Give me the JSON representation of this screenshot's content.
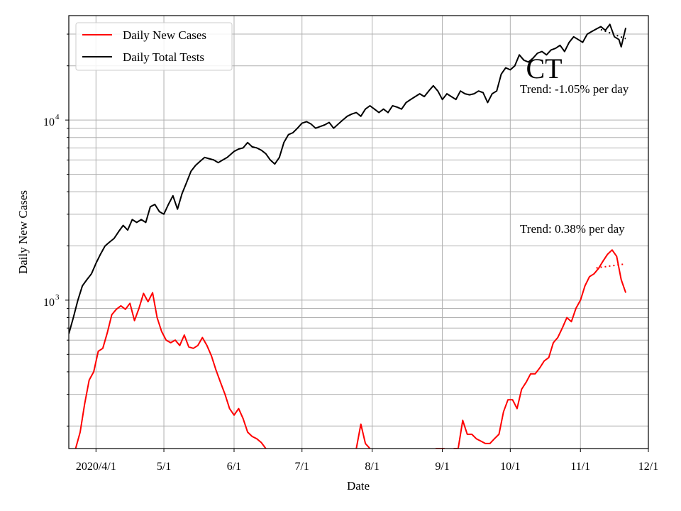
{
  "chart_data": {
    "type": "line",
    "title": "",
    "state_label": "CT",
    "xlabel": "Date",
    "ylabel": "Daily New Cases",
    "y_scale": "log",
    "ylim": [
      150,
      38000
    ],
    "xlim": [
      "2020-03-20",
      "2020-12-01"
    ],
    "grid": true,
    "legend_position": "upper-left",
    "x_ticks": [
      {
        "date": "2020-04-01",
        "label": "2020/4/1"
      },
      {
        "date": "2020-05-01",
        "label": "5/1"
      },
      {
        "date": "2020-06-01",
        "label": "6/1"
      },
      {
        "date": "2020-07-01",
        "label": "7/1"
      },
      {
        "date": "2020-08-01",
        "label": "8/1"
      },
      {
        "date": "2020-09-01",
        "label": "9/1"
      },
      {
        "date": "2020-10-01",
        "label": "10/1"
      },
      {
        "date": "2020-11-01",
        "label": "11/1"
      },
      {
        "date": "2020-12-01",
        "label": "12/1"
      }
    ],
    "y_ticks": [
      {
        "value": 1000,
        "base": "10",
        "exp": "3"
      },
      {
        "value": 10000,
        "base": "10",
        "exp": "4"
      }
    ],
    "series": [
      {
        "name": "Daily New Cases",
        "color": "#ff0000",
        "points": [
          [
            "2020-03-23",
            150
          ],
          [
            "2020-03-25",
            185
          ],
          [
            "2020-03-27",
            265
          ],
          [
            "2020-03-29",
            360
          ],
          [
            "2020-03-31",
            400
          ],
          [
            "2020-04-02",
            520
          ],
          [
            "2020-04-04",
            540
          ],
          [
            "2020-04-06",
            660
          ],
          [
            "2020-04-08",
            830
          ],
          [
            "2020-04-10",
            890
          ],
          [
            "2020-04-12",
            930
          ],
          [
            "2020-04-14",
            890
          ],
          [
            "2020-04-16",
            960
          ],
          [
            "2020-04-18",
            770
          ],
          [
            "2020-04-20",
            900
          ],
          [
            "2020-04-22",
            1090
          ],
          [
            "2020-04-24",
            980
          ],
          [
            "2020-04-26",
            1100
          ],
          [
            "2020-04-28",
            800
          ],
          [
            "2020-04-30",
            670
          ],
          [
            "2020-05-02",
            600
          ],
          [
            "2020-05-04",
            580
          ],
          [
            "2020-05-06",
            600
          ],
          [
            "2020-05-08",
            560
          ],
          [
            "2020-05-10",
            640
          ],
          [
            "2020-05-12",
            550
          ],
          [
            "2020-05-14",
            540
          ],
          [
            "2020-05-16",
            560
          ],
          [
            "2020-05-18",
            620
          ],
          [
            "2020-05-20",
            560
          ],
          [
            "2020-05-22",
            490
          ],
          [
            "2020-05-24",
            410
          ],
          [
            "2020-05-26",
            350
          ],
          [
            "2020-05-28",
            300
          ],
          [
            "2020-05-30",
            250
          ],
          [
            "2020-06-01",
            230
          ],
          [
            "2020-06-03",
            250
          ],
          [
            "2020-06-05",
            220
          ],
          [
            "2020-06-07",
            185
          ],
          [
            "2020-06-09",
            175
          ],
          [
            "2020-06-11",
            170
          ],
          [
            "2020-06-13",
            162
          ],
          [
            "2020-06-15",
            150
          ],
          null,
          [
            "2020-07-25",
            150
          ],
          [
            "2020-07-27",
            205
          ],
          [
            "2020-07-29",
            160
          ],
          [
            "2020-07-31",
            150
          ],
          null,
          [
            "2020-08-29",
            150
          ],
          [
            "2020-09-02",
            150
          ],
          null,
          [
            "2020-09-06",
            150
          ],
          [
            "2020-09-08",
            150
          ],
          [
            "2020-09-10",
            215
          ],
          [
            "2020-09-12",
            180
          ],
          [
            "2020-09-14",
            180
          ],
          [
            "2020-09-16",
            170
          ],
          [
            "2020-09-18",
            165
          ],
          [
            "2020-09-20",
            160
          ],
          [
            "2020-09-22",
            160
          ],
          [
            "2020-09-24",
            170
          ],
          [
            "2020-09-26",
            180
          ],
          [
            "2020-09-28",
            240
          ],
          [
            "2020-09-30",
            280
          ],
          [
            "2020-10-02",
            280
          ],
          [
            "2020-10-04",
            250
          ],
          [
            "2020-10-06",
            320
          ],
          [
            "2020-10-08",
            350
          ],
          [
            "2020-10-10",
            390
          ],
          [
            "2020-10-12",
            390
          ],
          [
            "2020-10-14",
            420
          ],
          [
            "2020-10-16",
            460
          ],
          [
            "2020-10-18",
            480
          ],
          [
            "2020-10-20",
            580
          ],
          [
            "2020-10-22",
            620
          ],
          [
            "2020-10-24",
            700
          ],
          [
            "2020-10-26",
            800
          ],
          [
            "2020-10-28",
            760
          ],
          [
            "2020-10-30",
            900
          ],
          [
            "2020-11-01",
            1000
          ],
          [
            "2020-11-03",
            1200
          ],
          [
            "2020-11-05",
            1350
          ],
          [
            "2020-11-07",
            1400
          ],
          [
            "2020-11-09",
            1500
          ],
          [
            "2020-11-11",
            1650
          ],
          [
            "2020-11-13",
            1800
          ],
          [
            "2020-11-15",
            1900
          ],
          [
            "2020-11-17",
            1750
          ],
          [
            "2020-11-19",
            1300
          ],
          [
            "2020-11-21",
            1100
          ]
        ],
        "trend": {
          "start": [
            "2020-11-08",
            1510
          ],
          "end": [
            "2020-11-21",
            1590
          ],
          "label": "Trend: 0.38% per day"
        }
      },
      {
        "name": "Daily Total Tests",
        "color": "#000000",
        "points": [
          [
            "2020-03-20",
            650
          ],
          [
            "2020-03-22",
            800
          ],
          [
            "2020-03-24",
            1000
          ],
          [
            "2020-03-26",
            1200
          ],
          [
            "2020-03-28",
            1300
          ],
          [
            "2020-03-30",
            1400
          ],
          [
            "2020-04-01",
            1600
          ],
          [
            "2020-04-03",
            1800
          ],
          [
            "2020-04-05",
            2000
          ],
          [
            "2020-04-07",
            2100
          ],
          [
            "2020-04-09",
            2200
          ],
          [
            "2020-04-11",
            2400
          ],
          [
            "2020-04-13",
            2600
          ],
          [
            "2020-04-15",
            2450
          ],
          [
            "2020-04-17",
            2800
          ],
          [
            "2020-04-19",
            2700
          ],
          [
            "2020-04-21",
            2800
          ],
          [
            "2020-04-23",
            2700
          ],
          [
            "2020-04-25",
            3300
          ],
          [
            "2020-04-27",
            3400
          ],
          [
            "2020-04-29",
            3100
          ],
          [
            "2020-05-01",
            3000
          ],
          [
            "2020-05-03",
            3400
          ],
          [
            "2020-05-05",
            3800
          ],
          [
            "2020-05-07",
            3200
          ],
          [
            "2020-05-09",
            3900
          ],
          [
            "2020-05-11",
            4500
          ],
          [
            "2020-05-13",
            5200
          ],
          [
            "2020-05-15",
            5600
          ],
          [
            "2020-05-17",
            5900
          ],
          [
            "2020-05-19",
            6200
          ],
          [
            "2020-05-21",
            6100
          ],
          [
            "2020-05-23",
            6000
          ],
          [
            "2020-05-25",
            5800
          ],
          [
            "2020-05-27",
            6000
          ],
          [
            "2020-05-29",
            6200
          ],
          [
            "2020-06-01",
            6700
          ],
          [
            "2020-06-03",
            6900
          ],
          [
            "2020-06-05",
            7000
          ],
          [
            "2020-06-07",
            7500
          ],
          [
            "2020-06-09",
            7100
          ],
          [
            "2020-06-11",
            7000
          ],
          [
            "2020-06-13",
            6800
          ],
          [
            "2020-06-15",
            6500
          ],
          [
            "2020-06-17",
            6000
          ],
          [
            "2020-06-19",
            5700
          ],
          [
            "2020-06-21",
            6200
          ],
          [
            "2020-06-23",
            7500
          ],
          [
            "2020-06-25",
            8300
          ],
          [
            "2020-06-27",
            8500
          ],
          [
            "2020-06-29",
            9000
          ],
          [
            "2020-07-01",
            9600
          ],
          [
            "2020-07-03",
            9800
          ],
          [
            "2020-07-05",
            9500
          ],
          [
            "2020-07-07",
            9000
          ],
          [
            "2020-07-09",
            9200
          ],
          [
            "2020-07-11",
            9400
          ],
          [
            "2020-07-13",
            9700
          ],
          [
            "2020-07-15",
            9000
          ],
          [
            "2020-07-17",
            9500
          ],
          [
            "2020-07-19",
            10000
          ],
          [
            "2020-07-21",
            10500
          ],
          [
            "2020-07-23",
            10800
          ],
          [
            "2020-07-25",
            11000
          ],
          [
            "2020-07-27",
            10500
          ],
          [
            "2020-07-29",
            11500
          ],
          [
            "2020-07-31",
            12000
          ],
          [
            "2020-08-02",
            11500
          ],
          [
            "2020-08-04",
            11000
          ],
          [
            "2020-08-06",
            11500
          ],
          [
            "2020-08-08",
            11000
          ],
          [
            "2020-08-10",
            12000
          ],
          [
            "2020-08-12",
            11800
          ],
          [
            "2020-08-14",
            11500
          ],
          [
            "2020-08-16",
            12500
          ],
          [
            "2020-08-18",
            13000
          ],
          [
            "2020-08-20",
            13500
          ],
          [
            "2020-08-22",
            14000
          ],
          [
            "2020-08-24",
            13500
          ],
          [
            "2020-08-26",
            14500
          ],
          [
            "2020-08-28",
            15500
          ],
          [
            "2020-08-30",
            14500
          ],
          [
            "2020-09-01",
            13000
          ],
          [
            "2020-09-03",
            14000
          ],
          [
            "2020-09-05",
            13500
          ],
          [
            "2020-09-07",
            13000
          ],
          [
            "2020-09-09",
            14500
          ],
          [
            "2020-09-11",
            14000
          ],
          [
            "2020-09-13",
            13800
          ],
          [
            "2020-09-15",
            14000
          ],
          [
            "2020-09-17",
            14500
          ],
          [
            "2020-09-19",
            14200
          ],
          [
            "2020-09-21",
            12500
          ],
          [
            "2020-09-23",
            14000
          ],
          [
            "2020-09-25",
            14500
          ],
          [
            "2020-09-27",
            18000
          ],
          [
            "2020-09-29",
            19500
          ],
          [
            "2020-10-01",
            19000
          ],
          [
            "2020-10-03",
            20000
          ],
          [
            "2020-10-05",
            23000
          ],
          [
            "2020-10-07",
            21500
          ],
          [
            "2020-10-09",
            21000
          ],
          [
            "2020-10-11",
            22000
          ],
          [
            "2020-10-13",
            23500
          ],
          [
            "2020-10-15",
            24000
          ],
          [
            "2020-10-17",
            23000
          ],
          [
            "2020-10-19",
            24500
          ],
          [
            "2020-10-21",
            25000
          ],
          [
            "2020-10-23",
            26000
          ],
          [
            "2020-10-25",
            24000
          ],
          [
            "2020-10-27",
            27000
          ],
          [
            "2020-10-29",
            29000
          ],
          [
            "2020-10-31",
            28000
          ],
          [
            "2020-11-02",
            27000
          ],
          [
            "2020-11-04",
            30000
          ],
          [
            "2020-11-06",
            31000
          ],
          [
            "2020-11-08",
            32000
          ],
          [
            "2020-11-10",
            33000
          ],
          [
            "2020-11-12",
            31500
          ],
          [
            "2020-11-14",
            34000
          ],
          [
            "2020-11-16",
            29000
          ],
          [
            "2020-11-18",
            28000
          ],
          [
            "2020-11-19",
            25500
          ],
          [
            "2020-11-21",
            32500
          ]
        ],
        "trend": {
          "start": [
            "2020-11-10",
            31800
          ],
          "end": [
            "2020-11-21",
            28300
          ],
          "label": "Trend: -1.05% per day"
        }
      }
    ]
  }
}
